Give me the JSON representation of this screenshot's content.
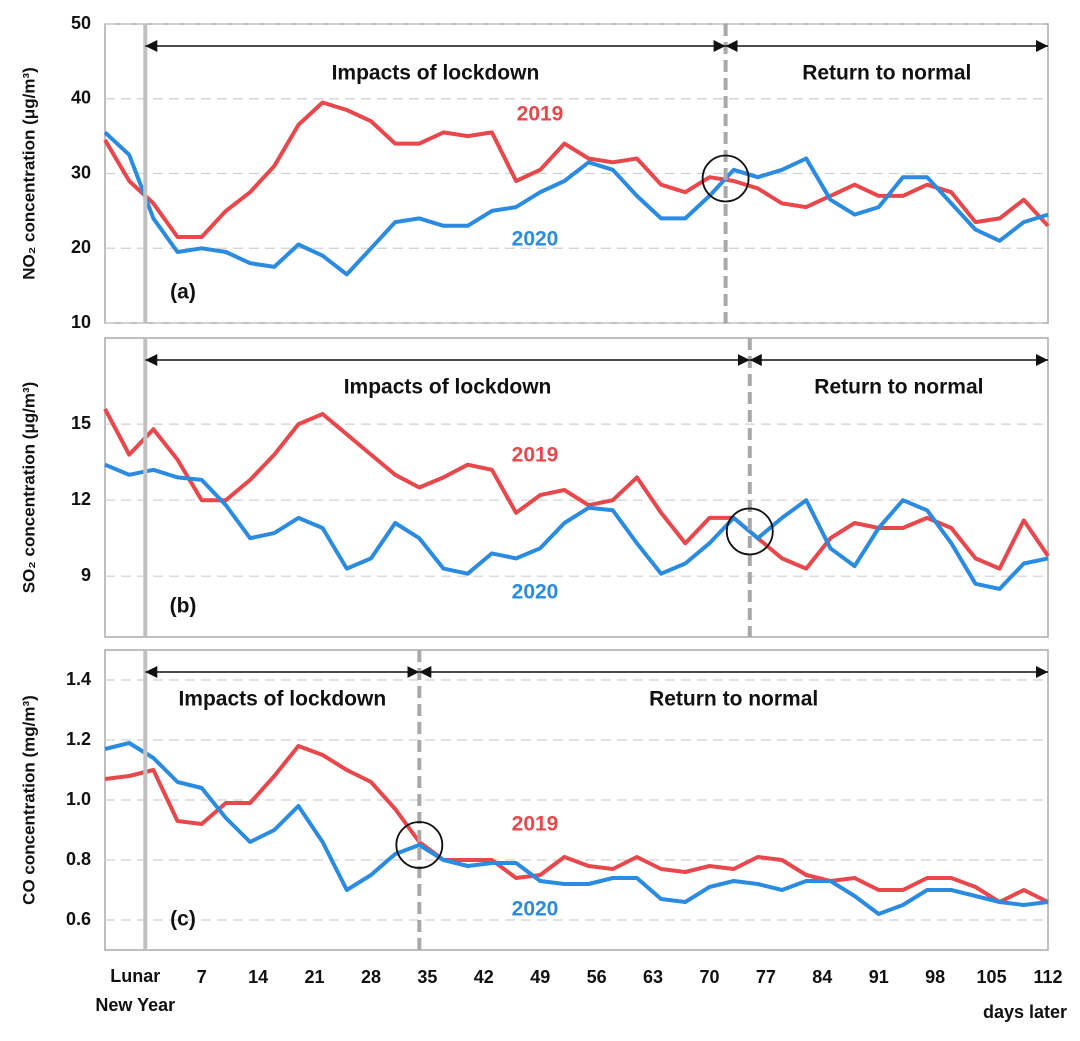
{
  "chart_data": [
    {
      "type": "line",
      "y_label": "NO₂ concentration (μg/m³)",
      "panel_label": "(a)",
      "annotations": [
        "Impacts of lockdown",
        "Return to normal"
      ],
      "event_day": 0,
      "split_day": 72,
      "xlim": [
        -5,
        112
      ],
      "ylim": [
        10,
        50
      ],
      "yticks": [
        10,
        20,
        30,
        40,
        50
      ],
      "grid": true,
      "x": [
        -5,
        -2,
        1,
        4,
        7,
        10,
        13,
        16,
        19,
        22,
        25,
        28,
        31,
        34,
        37,
        40,
        43,
        46,
        49,
        52,
        55,
        58,
        61,
        64,
        67,
        70,
        73,
        76,
        79,
        82,
        85,
        88,
        91,
        94,
        97,
        100,
        103,
        106,
        109,
        112
      ],
      "series": [
        {
          "name": "2019",
          "color": "#e8474b",
          "values": [
            34.5,
            29,
            26,
            21.5,
            21.5,
            25,
            27.5,
            31,
            36.5,
            39.5,
            38.5,
            37,
            34,
            34,
            35.5,
            35,
            35.5,
            29,
            30.5,
            34,
            32,
            31.5,
            32,
            28.5,
            27.5,
            29.5,
            29,
            28,
            26,
            25.5,
            27,
            28.5,
            27,
            27,
            28.5,
            27.5,
            23.5,
            24,
            26.5,
            23
          ]
        },
        {
          "name": "2020",
          "color": "#2a8be0",
          "values": [
            35.5,
            32.5,
            24,
            19.5,
            20,
            19.5,
            18,
            17.5,
            20.5,
            19,
            16.5,
            20,
            23.5,
            24,
            23,
            23,
            25,
            25.5,
            27.5,
            29,
            31.5,
            30.5,
            27,
            24,
            24,
            27,
            30.5,
            29.5,
            30.5,
            32,
            26.5,
            24.5,
            25.5,
            29.5,
            29.5,
            26,
            22.5,
            21,
            23.5,
            24.5
          ]
        }
      ]
    },
    {
      "type": "line",
      "y_label": "SO₂ concentration (μg/m³)",
      "panel_label": "(b)",
      "annotations": [
        "Impacts of lockdown",
        "Return to normal"
      ],
      "event_day": 0,
      "split_day": 75,
      "xlim": [
        -5,
        112
      ],
      "ylim": [
        6.6,
        18.4
      ],
      "yticks": [
        9,
        12,
        15
      ],
      "grid": true,
      "x": [
        -5,
        -2,
        1,
        4,
        7,
        10,
        13,
        16,
        19,
        22,
        25,
        28,
        31,
        34,
        37,
        40,
        43,
        46,
        49,
        52,
        55,
        58,
        61,
        64,
        67,
        70,
        73,
        76,
        79,
        82,
        85,
        88,
        91,
        94,
        97,
        100,
        103,
        106,
        109,
        112
      ],
      "series": [
        {
          "name": "2019",
          "color": "#e8474b",
          "values": [
            15.6,
            13.8,
            14.8,
            13.6,
            12.0,
            12.0,
            12.8,
            13.8,
            15.0,
            15.4,
            14.6,
            13.8,
            13.0,
            12.5,
            12.9,
            13.4,
            13.2,
            11.5,
            12.2,
            12.4,
            11.8,
            12.0,
            12.9,
            11.5,
            10.3,
            11.3,
            11.3,
            10.5,
            9.7,
            9.3,
            10.5,
            11.1,
            10.9,
            10.9,
            11.3,
            10.9,
            9.7,
            9.3,
            11.2,
            9.8
          ]
        },
        {
          "name": "2020",
          "color": "#2a8be0",
          "values": [
            13.4,
            13.0,
            13.2,
            12.9,
            12.8,
            11.8,
            10.5,
            10.7,
            11.3,
            10.9,
            9.3,
            9.7,
            11.1,
            10.5,
            9.3,
            9.1,
            9.9,
            9.7,
            10.1,
            11.1,
            11.7,
            11.6,
            10.3,
            9.1,
            9.5,
            10.3,
            11.3,
            10.5,
            11.3,
            12.0,
            10.1,
            9.4,
            10.9,
            12.0,
            11.6,
            10.3,
            8.7,
            8.5,
            9.5,
            9.7
          ]
        }
      ]
    },
    {
      "type": "line",
      "y_label": "CO concentration (mg/m³)",
      "panel_label": "(c)",
      "annotations": [
        "Impacts of lockdown",
        "Return to normal"
      ],
      "event_day": 0,
      "split_day": 34,
      "xlim": [
        -5,
        112
      ],
      "ylim": [
        0.5,
        1.5
      ],
      "yticks": [
        0.6,
        0.8,
        {
          "value": 1.0,
          "label": "1.0"
        },
        1.2,
        1.4
      ],
      "grid": true,
      "xticks": [
        {
          "value": 0,
          "label": "Lunar New Year"
        },
        7,
        14,
        21,
        28,
        35,
        42,
        49,
        56,
        63,
        70,
        77,
        84,
        91,
        98,
        105,
        112
      ],
      "x_label": "days later",
      "x": [
        -5,
        -2,
        1,
        4,
        7,
        10,
        13,
        16,
        19,
        22,
        25,
        28,
        31,
        34,
        37,
        40,
        43,
        46,
        49,
        52,
        55,
        58,
        61,
        64,
        67,
        70,
        73,
        76,
        79,
        82,
        85,
        88,
        91,
        94,
        97,
        100,
        103,
        106,
        109,
        112
      ],
      "series": [
        {
          "name": "2019",
          "color": "#e8474b",
          "values": [
            1.07,
            1.08,
            1.1,
            0.93,
            0.92,
            0.99,
            0.99,
            1.08,
            1.18,
            1.15,
            1.1,
            1.06,
            0.97,
            0.86,
            0.8,
            0.8,
            0.8,
            0.74,
            0.75,
            0.81,
            0.78,
            0.77,
            0.81,
            0.77,
            0.76,
            0.78,
            0.77,
            0.81,
            0.8,
            0.75,
            0.73,
            0.74,
            0.7,
            0.7,
            0.74,
            0.74,
            0.71,
            0.66,
            0.7,
            0.66
          ]
        },
        {
          "name": "2020",
          "color": "#2a8be0",
          "values": [
            1.17,
            1.19,
            1.14,
            1.06,
            1.04,
            0.94,
            0.86,
            0.9,
            0.98,
            0.86,
            0.7,
            0.75,
            0.82,
            0.85,
            0.8,
            0.78,
            0.79,
            0.79,
            0.73,
            0.72,
            0.72,
            0.74,
            0.74,
            0.67,
            0.66,
            0.71,
            0.73,
            0.72,
            0.7,
            0.73,
            0.73,
            0.68,
            0.62,
            0.65,
            0.7,
            0.7,
            0.68,
            0.66,
            0.65,
            0.66
          ]
        }
      ]
    }
  ]
}
